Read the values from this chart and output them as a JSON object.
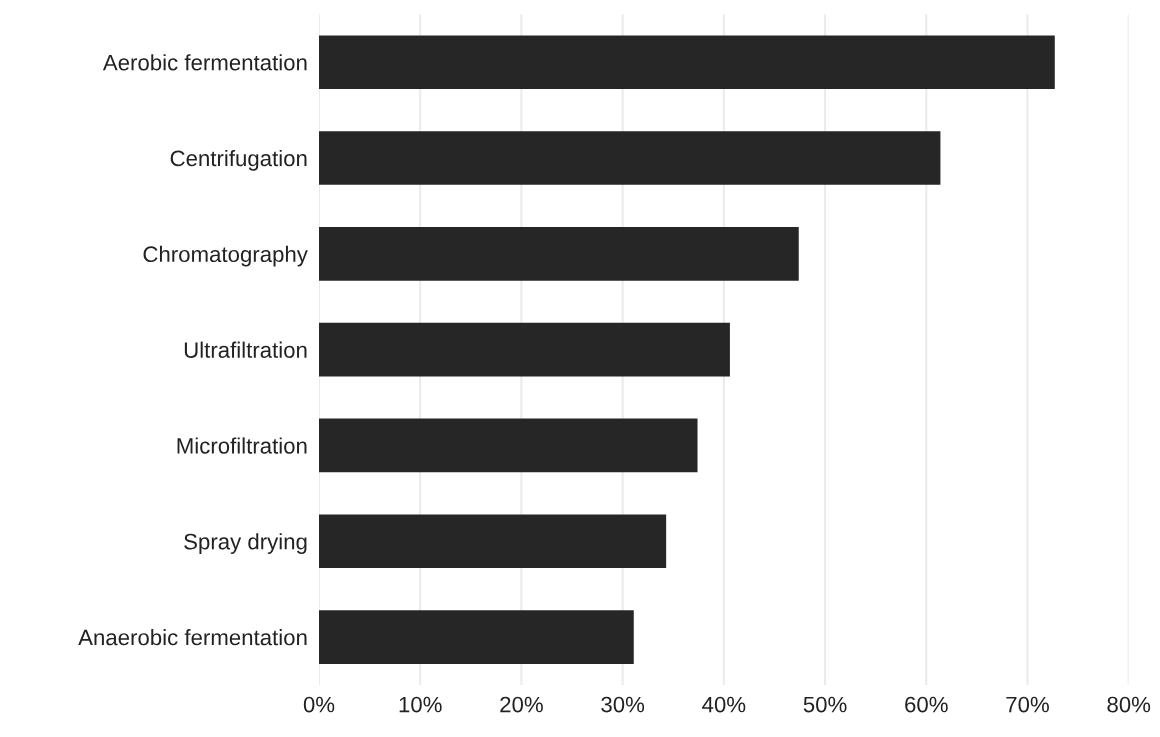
{
  "chart_data": {
    "type": "bar",
    "orientation": "horizontal",
    "categories": [
      "Aerobic fermentation",
      "Centrifugation",
      "Chromatography",
      "Ultrafiltration",
      "Microfiltration",
      "Spray drying",
      "Anaerobic fermentation"
    ],
    "values": [
      72.7,
      61.4,
      47.4,
      40.6,
      37.4,
      34.3,
      31.1
    ],
    "color": "#262626",
    "xlim": [
      0,
      80
    ],
    "xticks": [
      {
        "value": 0,
        "label": "0%"
      },
      {
        "value": 10,
        "label": "10%"
      },
      {
        "value": 20,
        "label": "20%"
      },
      {
        "value": 30,
        "label": "30%"
      },
      {
        "value": 40,
        "label": "40%"
      },
      {
        "value": 50,
        "label": "50%"
      },
      {
        "value": 60,
        "label": "60%"
      },
      {
        "value": 70,
        "label": "70%"
      },
      {
        "value": 80,
        "label": "80%"
      }
    ],
    "grid": "x"
  }
}
